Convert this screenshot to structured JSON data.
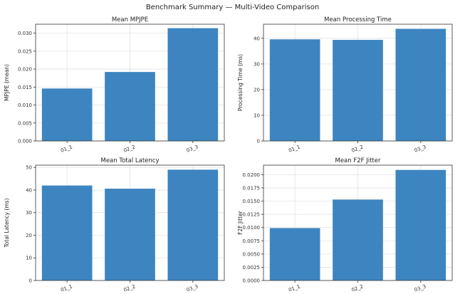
{
  "figure": {
    "suptitle": "Benchmark Summary — Multi-Video Comparison",
    "bar_color": "#3d85c0",
    "grid_color": "#e3e3e3",
    "axis_color": "#333333"
  },
  "chart_data": [
    {
      "type": "bar",
      "title": "Mean MPJPE",
      "xlabel": "",
      "ylabel": "MPJPE (mean)",
      "categories": [
        "01_1",
        "02_2",
        "03_3"
      ],
      "values": [
        0.0146,
        0.0192,
        0.0314
      ],
      "ylim": [
        0,
        0.0325
      ],
      "yticks": [
        0,
        0.005,
        0.01,
        0.015,
        0.02,
        0.025,
        0.03
      ],
      "ytick_labels": [
        "0.000",
        "0.005",
        "0.010",
        "0.015",
        "0.020",
        "0.025",
        "0.030"
      ],
      "grid": true
    },
    {
      "type": "bar",
      "title": "Mean Processing Time",
      "xlabel": "",
      "ylabel": "Processing Time (ms)",
      "categories": [
        "01_1",
        "02_2",
        "03_3"
      ],
      "values": [
        39.6,
        39.4,
        43.7
      ],
      "ylim": [
        0,
        45.5
      ],
      "yticks": [
        0,
        10,
        20,
        30,
        40
      ],
      "ytick_labels": [
        "0",
        "10",
        "20",
        "30",
        "40"
      ],
      "grid": true
    },
    {
      "type": "bar",
      "title": "Mean Total Latency",
      "xlabel": "",
      "ylabel": "Total Latency (ms)",
      "categories": [
        "01_1",
        "02_2",
        "03_3"
      ],
      "values": [
        42.0,
        40.6,
        49.0
      ],
      "ylim": [
        0,
        51
      ],
      "yticks": [
        0,
        10,
        20,
        30,
        40,
        50
      ],
      "ytick_labels": [
        "0",
        "10",
        "20",
        "30",
        "40",
        "50"
      ],
      "grid": true
    },
    {
      "type": "bar",
      "title": "Mean F2F Jitter",
      "xlabel": "",
      "ylabel": "F2F Jitter",
      "categories": [
        "01_1",
        "02_2",
        "03_3"
      ],
      "values": [
        0.0099,
        0.0153,
        0.0209
      ],
      "ylim": [
        0,
        0.0218
      ],
      "yticks": [
        0,
        0.0025,
        0.005,
        0.0075,
        0.01,
        0.0125,
        0.015,
        0.0175,
        0.02
      ],
      "ytick_labels": [
        "0.0000",
        "0.0025",
        "0.0050",
        "0.0075",
        "0.0100",
        "0.0125",
        "0.0150",
        "0.0175",
        "0.0200"
      ],
      "grid": true
    }
  ]
}
